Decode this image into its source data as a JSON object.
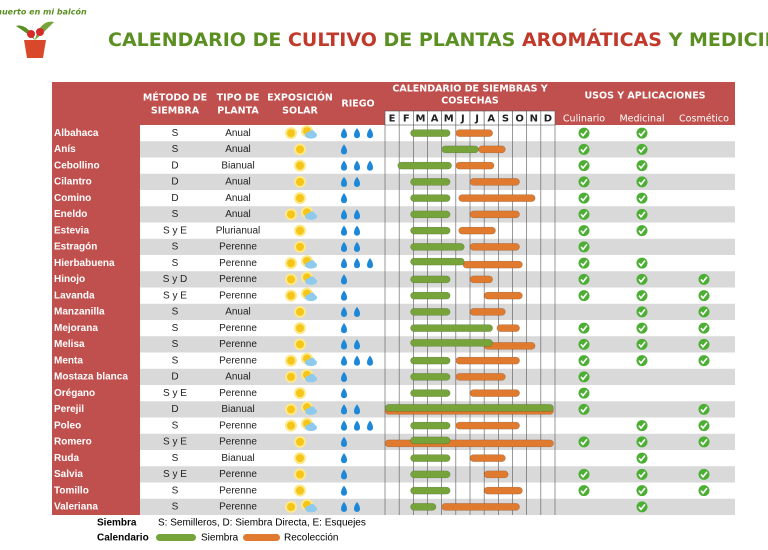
{
  "logo_text": "Un huerto en mi balcón",
  "title_parts": [
    {
      "text": "CALENDARIO DE ",
      "color": "#5b8f22"
    },
    {
      "text": "CULTIVO",
      "color": "#c0392b"
    },
    {
      "text": " DE PLANTAS ",
      "color": "#5b8f22"
    },
    {
      "text": "AROMÁTICAS",
      "color": "#c0392b"
    },
    {
      "text": " Y MEDICINALES",
      "color": "#5b8f22"
    }
  ],
  "headers": {
    "metodo": [
      "MÉTODO DE",
      "SIEMBRA"
    ],
    "tipo": [
      "TIPO DE",
      "PLANTA"
    ],
    "exposicion": [
      "EXPOSICIÓN",
      "SOLAR"
    ],
    "riego": [
      "RIEGO"
    ],
    "calendario": [
      "CALENDARIO DE SIEMBRAS Y",
      "COSECHAS"
    ],
    "usos": [
      "USOS Y APLICACIONES"
    ]
  },
  "months": [
    "E",
    "F",
    "M",
    "A",
    "M",
    "J",
    "J",
    "A",
    "S",
    "O",
    "N",
    "D"
  ],
  "usos": [
    "Culinario",
    "Medicinal",
    "Cosmético"
  ],
  "colors": {
    "header": "#c0504d",
    "stripe": "#d9d9d9",
    "siembra": "#76a33a",
    "recoleccion": "#e07a2e",
    "check": "#4caf34",
    "drop": "#1e88d8",
    "sun": "#f5c518",
    "cloud": "#8ec9ee"
  },
  "rows": [
    {
      "name": "Albahaca",
      "metodo": "S",
      "tipo": "Anual",
      "exposicion": "semisombra",
      "riego": 3,
      "siembra": [
        1.8,
        4.6
      ],
      "recoleccion": [
        5,
        7.6
      ],
      "usos": [
        true,
        true,
        false
      ]
    },
    {
      "name": "Anís",
      "metodo": "S",
      "tipo": "Anual",
      "exposicion": "sol",
      "riego": 1,
      "siembra": [
        4,
        6.6
      ],
      "recoleccion": [
        6.6,
        8.5
      ],
      "usos": [
        true,
        true,
        false
      ]
    },
    {
      "name": "Cebollino",
      "metodo": "D",
      "tipo": "Bianual",
      "exposicion": "sol",
      "riego": 3,
      "siembra": [
        0.9,
        4.7
      ],
      "recoleccion": [
        5,
        7.7
      ],
      "usos": [
        true,
        true,
        false
      ]
    },
    {
      "name": "Cilantro",
      "metodo": "D",
      "tipo": "Anual",
      "exposicion": "sol",
      "riego": 2,
      "siembra": [
        1.8,
        4.6
      ],
      "recoleccion": [
        6,
        9.5
      ],
      "usos": [
        true,
        true,
        false
      ]
    },
    {
      "name": "Comino",
      "metodo": "D",
      "tipo": "Anual",
      "exposicion": "sol",
      "riego": 1,
      "siembra": [
        1.8,
        4.6
      ],
      "recoleccion": [
        5.2,
        10.6
      ],
      "usos": [
        true,
        true,
        false
      ]
    },
    {
      "name": "Eneldo",
      "metodo": "S",
      "tipo": "Anual",
      "exposicion": "semisombra",
      "riego": 2,
      "siembra": [
        1.8,
        4.6
      ],
      "recoleccion": [
        6,
        9.5
      ],
      "usos": [
        true,
        true,
        false
      ]
    },
    {
      "name": "Estevia",
      "metodo": "S y E",
      "tipo": "Plurianual",
      "exposicion": "sol",
      "riego": 2,
      "siembra": [
        1.8,
        4.6
      ],
      "recoleccion": [
        5.2,
        7.8
      ],
      "usos": [
        true,
        true,
        false
      ]
    },
    {
      "name": "Estragón",
      "metodo": "S",
      "tipo": "Perenne",
      "exposicion": "sol",
      "riego": 2,
      "siembra": [
        1.8,
        5.6
      ],
      "recoleccion": [
        6,
        9.5
      ],
      "usos": [
        true,
        false,
        false
      ]
    },
    {
      "name": "Hierbabuena",
      "metodo": "S",
      "tipo": "Perenne",
      "exposicion": "semisombra",
      "riego": 3,
      "siembra": [
        1.8,
        5.6
      ],
      "recoleccion": [
        5.5,
        9.7
      ],
      "usos": [
        true,
        true,
        false
      ]
    },
    {
      "name": "Hinojo",
      "metodo": "S y D",
      "tipo": "Perenne",
      "exposicion": "semisombra",
      "riego": 1,
      "siembra": [
        1.8,
        4.6
      ],
      "recoleccion": [
        6,
        7.6
      ],
      "usos": [
        true,
        true,
        true
      ]
    },
    {
      "name": "Lavanda",
      "metodo": "S y E",
      "tipo": "Perenne",
      "exposicion": "semisombra",
      "riego": 1,
      "siembra": [
        1.8,
        4.6
      ],
      "recoleccion": [
        7,
        9.7
      ],
      "usos": [
        true,
        true,
        true
      ]
    },
    {
      "name": "Manzanilla",
      "metodo": "S",
      "tipo": "Anual",
      "exposicion": "sol",
      "riego": 2,
      "siembra": [
        1.8,
        4.6
      ],
      "recoleccion": [
        6,
        8.5
      ],
      "usos": [
        false,
        true,
        true
      ]
    },
    {
      "name": "Mejorana",
      "metodo": "S",
      "tipo": "Perenne",
      "exposicion": "sol",
      "riego": 1,
      "siembra": [
        1.8,
        7.6
      ],
      "recoleccion": [
        7.9,
        9.5
      ],
      "usos": [
        true,
        true,
        true
      ]
    },
    {
      "name": "Melisa",
      "metodo": "S",
      "tipo": "Perenne",
      "exposicion": "sol",
      "riego": 2,
      "siembra": [
        1.8,
        7.6
      ],
      "recoleccion": [
        7,
        10.6
      ],
      "usos": [
        true,
        true,
        true
      ]
    },
    {
      "name": "Menta",
      "metodo": "S",
      "tipo": "Perenne",
      "exposicion": "semisombra",
      "riego": 3,
      "siembra": [
        1.8,
        4.6
      ],
      "recoleccion": [
        5,
        9.5
      ],
      "usos": [
        true,
        true,
        true
      ]
    },
    {
      "name": "Mostaza blanca",
      "metodo": "D",
      "tipo": "Anual",
      "exposicion": "semisombra",
      "riego": 1,
      "siembra": [
        1.8,
        4.6
      ],
      "recoleccion": [
        5,
        8.5
      ],
      "usos": [
        true,
        false,
        false
      ]
    },
    {
      "name": "Orégano",
      "metodo": "S y E",
      "tipo": "Perenne",
      "exposicion": "sol",
      "riego": 1,
      "siembra": [
        1.8,
        4.6
      ],
      "recoleccion": [
        6,
        9.5
      ],
      "usos": [
        true,
        false,
        false
      ]
    },
    {
      "name": "Perejil",
      "metodo": "D",
      "tipo": "Bianual",
      "exposicion": "semisombra",
      "riego": 2,
      "siembra": [
        0,
        11.9
      ],
      "recoleccion": [
        0,
        11.9
      ],
      "usos": [
        true,
        false,
        true
      ]
    },
    {
      "name": "Poleo",
      "metodo": "S",
      "tipo": "Perenne",
      "exposicion": "semisombra",
      "riego": 3,
      "siembra": [
        1.8,
        4.6
      ],
      "recoleccion": [
        5,
        9.5
      ],
      "usos": [
        false,
        true,
        true
      ]
    },
    {
      "name": "Romero",
      "metodo": "S y E",
      "tipo": "Perenne",
      "exposicion": "sol",
      "riego": 1,
      "siembra": [
        1.8,
        4.6
      ],
      "recoleccion": [
        0,
        11.9
      ],
      "usos": [
        true,
        true,
        true
      ]
    },
    {
      "name": "Ruda",
      "metodo": "S",
      "tipo": "Bianual",
      "exposicion": "sol",
      "riego": 1,
      "siembra": [
        1.8,
        4.6
      ],
      "recoleccion": [
        6,
        8.5
      ],
      "usos": [
        false,
        true,
        false
      ]
    },
    {
      "name": "Salvia",
      "metodo": "S y E",
      "tipo": "Perenne",
      "exposicion": "sol",
      "riego": 1,
      "siembra": [
        1.8,
        4.6
      ],
      "recoleccion": [
        7,
        8.7
      ],
      "usos": [
        true,
        true,
        true
      ]
    },
    {
      "name": "Tomillo",
      "metodo": "S",
      "tipo": "Perenne",
      "exposicion": "sol",
      "riego": 1,
      "siembra": [
        1.8,
        4.6
      ],
      "recoleccion": [
        7,
        9.7
      ],
      "usos": [
        true,
        true,
        true
      ]
    },
    {
      "name": "Valeriana",
      "metodo": "S",
      "tipo": "Perenne",
      "exposicion": "semisombra",
      "riego": 2,
      "siembra": [
        1.8,
        3.6
      ],
      "recoleccion": [
        4,
        9.5
      ],
      "usos": [
        false,
        true,
        false
      ]
    }
  ],
  "legend": {
    "siembra_label": "Siembra",
    "siembra_text": "S: Semilleros, D: Siembra Directa, E: Esquejes",
    "calendario_label": "Calendario",
    "siembra": "Siembra",
    "recoleccion": "Recolección"
  }
}
